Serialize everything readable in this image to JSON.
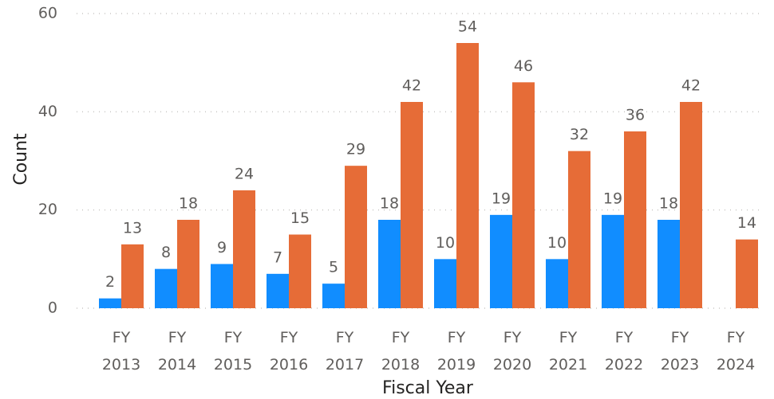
{
  "chart_data": {
    "type": "bar",
    "x_label": "Fiscal Year",
    "y_label": "Count",
    "categories": [
      "FY 2013",
      "FY 2014",
      "FY 2015",
      "FY 2016",
      "FY 2017",
      "FY 2018",
      "FY 2019",
      "FY 2020",
      "FY 2021",
      "FY 2022",
      "FY 2023",
      "FY 2024"
    ],
    "series": [
      {
        "color": "#118dff",
        "values": [
          2,
          8,
          9,
          7,
          5,
          18,
          10,
          19,
          10,
          19,
          18,
          null
        ]
      },
      {
        "color": "#e66c37",
        "values": [
          13,
          18,
          24,
          15,
          29,
          42,
          54,
          46,
          32,
          36,
          42,
          14
        ]
      }
    ],
    "ylim": [
      0,
      60
    ],
    "yticks": [
      0,
      20,
      40,
      60
    ],
    "grid": true
  }
}
